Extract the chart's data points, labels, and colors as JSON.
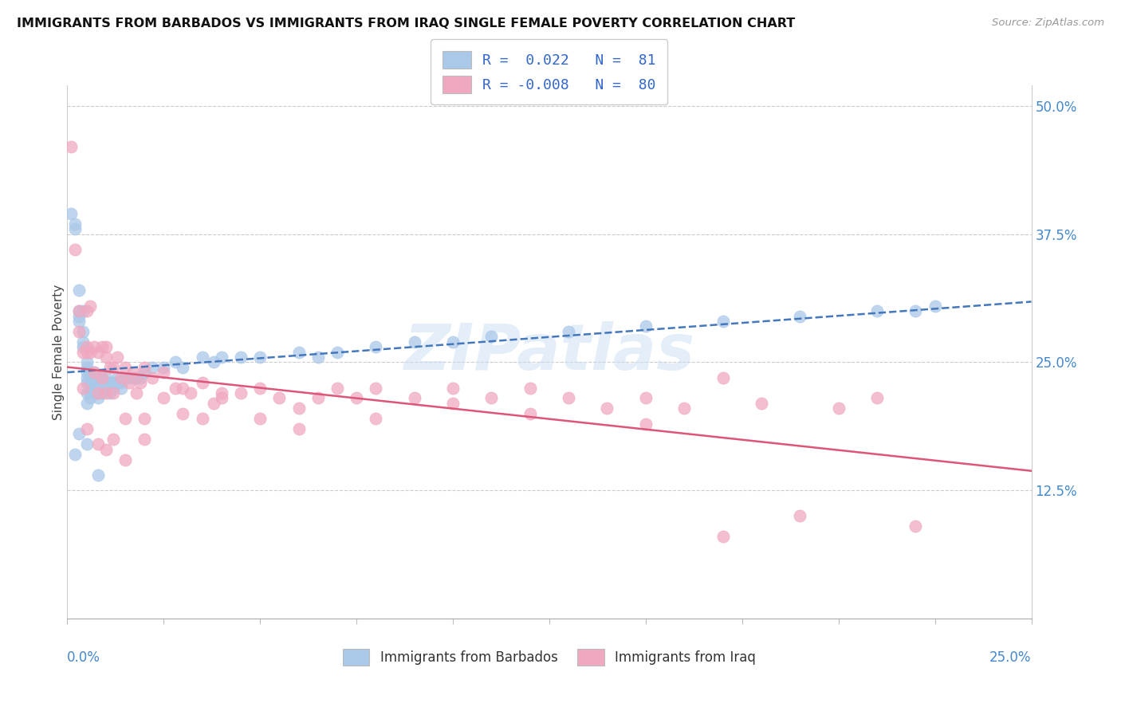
{
  "title": "IMMIGRANTS FROM BARBADOS VS IMMIGRANTS FROM IRAQ SINGLE FEMALE POVERTY CORRELATION CHART",
  "source": "Source: ZipAtlas.com",
  "ylabel": "Single Female Poverty",
  "xmin": 0.0,
  "xmax": 0.25,
  "ymin": 0.0,
  "ymax": 0.52,
  "yticks": [
    0.0,
    0.125,
    0.25,
    0.375,
    0.5
  ],
  "ytick_labels": [
    "",
    "12.5%",
    "25.0%",
    "37.5%",
    "50.0%"
  ],
  "barbados_R": 0.022,
  "barbados_N": 81,
  "iraq_R": -0.008,
  "iraq_N": 80,
  "barbados_color": "#aac8e8",
  "iraq_color": "#f0a8c0",
  "barbados_line_color": "#4477bb",
  "iraq_line_color": "#dd5577",
  "watermark": "ZIPatlas",
  "background_color": "#ffffff",
  "barbados_x": [
    0.001,
    0.002,
    0.002,
    0.003,
    0.003,
    0.003,
    0.003,
    0.004,
    0.004,
    0.004,
    0.004,
    0.005,
    0.005,
    0.005,
    0.005,
    0.005,
    0.005,
    0.005,
    0.006,
    0.006,
    0.006,
    0.006,
    0.006,
    0.007,
    0.007,
    0.007,
    0.007,
    0.007,
    0.008,
    0.008,
    0.008,
    0.008,
    0.009,
    0.009,
    0.009,
    0.009,
    0.01,
    0.01,
    0.01,
    0.011,
    0.011,
    0.011,
    0.012,
    0.012,
    0.013,
    0.013,
    0.014,
    0.014,
    0.015,
    0.016,
    0.017,
    0.018,
    0.019,
    0.02,
    0.022,
    0.025,
    0.028,
    0.03,
    0.035,
    0.038,
    0.04,
    0.045,
    0.05,
    0.06,
    0.065,
    0.07,
    0.08,
    0.09,
    0.1,
    0.11,
    0.13,
    0.15,
    0.17,
    0.19,
    0.21,
    0.22,
    0.225,
    0.002,
    0.003,
    0.005,
    0.008
  ],
  "barbados_y": [
    0.395,
    0.38,
    0.385,
    0.32,
    0.3,
    0.295,
    0.29,
    0.27,
    0.265,
    0.28,
    0.3,
    0.25,
    0.245,
    0.24,
    0.235,
    0.23,
    0.22,
    0.21,
    0.24,
    0.235,
    0.23,
    0.22,
    0.215,
    0.24,
    0.235,
    0.23,
    0.225,
    0.22,
    0.235,
    0.23,
    0.22,
    0.215,
    0.235,
    0.23,
    0.225,
    0.22,
    0.235,
    0.23,
    0.225,
    0.23,
    0.225,
    0.22,
    0.23,
    0.225,
    0.235,
    0.23,
    0.23,
    0.225,
    0.235,
    0.235,
    0.235,
    0.235,
    0.235,
    0.24,
    0.245,
    0.245,
    0.25,
    0.245,
    0.255,
    0.25,
    0.255,
    0.255,
    0.255,
    0.26,
    0.255,
    0.26,
    0.265,
    0.27,
    0.27,
    0.275,
    0.28,
    0.285,
    0.29,
    0.295,
    0.3,
    0.3,
    0.305,
    0.16,
    0.18,
    0.17,
    0.14
  ],
  "iraq_x": [
    0.001,
    0.002,
    0.003,
    0.004,
    0.005,
    0.005,
    0.006,
    0.007,
    0.008,
    0.009,
    0.01,
    0.01,
    0.011,
    0.012,
    0.013,
    0.014,
    0.015,
    0.016,
    0.017,
    0.018,
    0.019,
    0.02,
    0.022,
    0.025,
    0.028,
    0.03,
    0.032,
    0.035,
    0.038,
    0.04,
    0.045,
    0.05,
    0.055,
    0.06,
    0.065,
    0.07,
    0.075,
    0.08,
    0.09,
    0.1,
    0.11,
    0.12,
    0.13,
    0.14,
    0.15,
    0.16,
    0.17,
    0.18,
    0.19,
    0.2,
    0.21,
    0.22,
    0.003,
    0.004,
    0.005,
    0.006,
    0.007,
    0.008,
    0.009,
    0.01,
    0.012,
    0.015,
    0.02,
    0.025,
    0.03,
    0.035,
    0.04,
    0.05,
    0.06,
    0.08,
    0.1,
    0.12,
    0.15,
    0.17,
    0.005,
    0.008,
    0.01,
    0.012,
    0.015,
    0.02
  ],
  "iraq_y": [
    0.46,
    0.36,
    0.3,
    0.26,
    0.3,
    0.265,
    0.305,
    0.265,
    0.26,
    0.265,
    0.255,
    0.265,
    0.245,
    0.245,
    0.255,
    0.235,
    0.245,
    0.23,
    0.24,
    0.22,
    0.23,
    0.245,
    0.235,
    0.24,
    0.225,
    0.225,
    0.22,
    0.23,
    0.21,
    0.22,
    0.22,
    0.225,
    0.215,
    0.205,
    0.215,
    0.225,
    0.215,
    0.225,
    0.215,
    0.225,
    0.215,
    0.225,
    0.215,
    0.205,
    0.215,
    0.205,
    0.235,
    0.21,
    0.1,
    0.205,
    0.215,
    0.09,
    0.28,
    0.225,
    0.26,
    0.26,
    0.24,
    0.22,
    0.235,
    0.22,
    0.22,
    0.195,
    0.195,
    0.215,
    0.2,
    0.195,
    0.215,
    0.195,
    0.185,
    0.195,
    0.21,
    0.2,
    0.19,
    0.08,
    0.185,
    0.17,
    0.165,
    0.175,
    0.155,
    0.175
  ]
}
